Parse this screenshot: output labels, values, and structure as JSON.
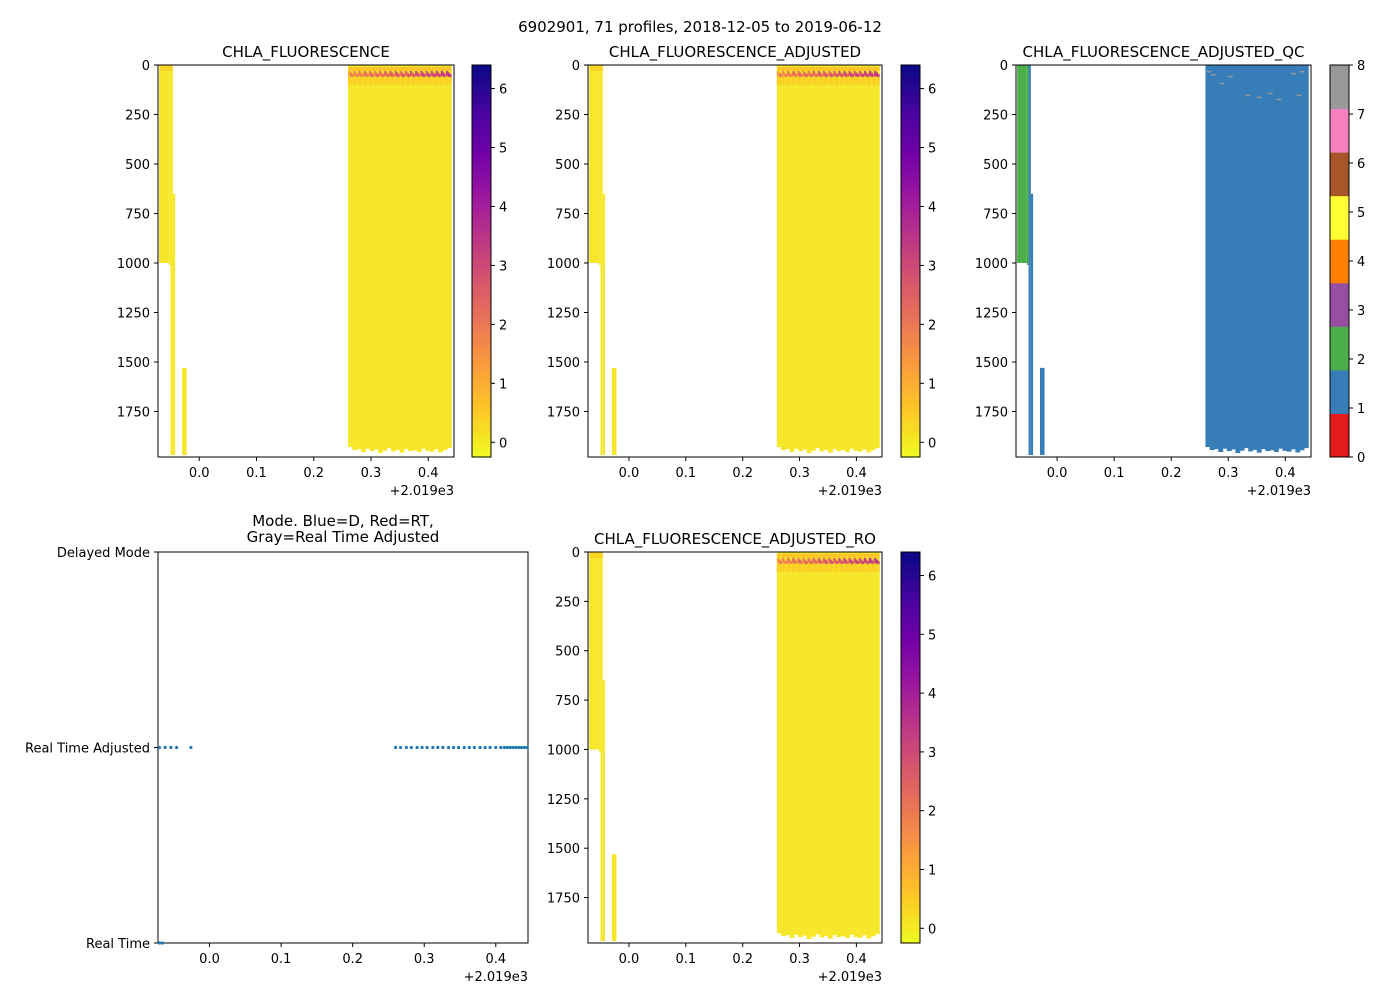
{
  "figure": {
    "suptitle": "6902901, 71 profiles, 2018-12-05 to 2019-06-12",
    "offset_label": "+2.019e3"
  },
  "colors": {
    "yellow": "#f5e62b",
    "fill_main": "#f6e72a",
    "mode_blue": "#1f77b4",
    "qc_palette": [
      "#e41a1c",
      "#377eb8",
      "#4daf4a",
      "#984ea3",
      "#ff7f00",
      "#ffff33",
      "#a65628",
      "#f781bf",
      "#999999"
    ]
  },
  "chart_data": [
    {
      "id": "chla",
      "type": "heatmap",
      "title": "CHLA_FLUORESCENCE",
      "x_range": [
        -0.072,
        0.445
      ],
      "x_ticks": [
        "0.0",
        "0.1",
        "0.2",
        "0.3",
        "0.4"
      ],
      "y_range": [
        0,
        1980
      ],
      "y_ticks": [
        "0",
        "250",
        "500",
        "750",
        "1000",
        "1250",
        "1500",
        "1750"
      ],
      "colorbar": {
        "cmap": "plasma_r",
        "range": [
          -0.25,
          6.4
        ],
        "ticks": [
          "0",
          "1",
          "2",
          "3",
          "4",
          "5",
          "6"
        ]
      }
    },
    {
      "id": "chla_adj",
      "type": "heatmap",
      "title": "CHLA_FLUORESCENCE_ADJUSTED",
      "x_range": [
        -0.072,
        0.445
      ],
      "x_ticks": [
        "0.0",
        "0.1",
        "0.2",
        "0.3",
        "0.4"
      ],
      "y_range": [
        0,
        1980
      ],
      "y_ticks": [
        "0",
        "250",
        "500",
        "750",
        "1000",
        "1250",
        "1500",
        "1750"
      ],
      "colorbar": {
        "cmap": "plasma_r",
        "range": [
          -0.25,
          6.4
        ],
        "ticks": [
          "0",
          "1",
          "2",
          "3",
          "4",
          "5",
          "6"
        ]
      }
    },
    {
      "id": "chla_qc",
      "type": "heatmap",
      "title": "CHLA_FLUORESCENCE_ADJUSTED_QC",
      "x_range": [
        -0.072,
        0.445
      ],
      "x_ticks": [
        "0.0",
        "0.1",
        "0.2",
        "0.3",
        "0.4"
      ],
      "y_range": [
        0,
        1980
      ],
      "y_ticks": [
        "0",
        "250",
        "500",
        "750",
        "1000",
        "1250",
        "1500",
        "1750"
      ],
      "colorbar": {
        "cmap": "qc",
        "range": [
          0,
          8
        ],
        "ticks": [
          "0",
          "1",
          "2",
          "3",
          "4",
          "5",
          "6",
          "7",
          "8"
        ]
      }
    },
    {
      "id": "mode",
      "type": "scatter",
      "title_lines": [
        "Mode. Blue=D, Red=RT,",
        "Gray=Real Time Adjusted"
      ],
      "x_range": [
        -0.072,
        0.445
      ],
      "x_ticks": [
        "0.0",
        "0.1",
        "0.2",
        "0.3",
        "0.4"
      ],
      "y_categories": [
        "Real Time",
        "Real Time Adjusted",
        "Delayed Mode"
      ],
      "series": [
        {
          "name": "Real Time Adjusted",
          "x": [
            -0.07,
            -0.062,
            -0.054,
            -0.046,
            -0.026,
            0.26,
            0.267,
            0.275,
            0.282,
            0.29,
            0.297,
            0.304,
            0.312,
            0.319,
            0.326,
            0.334,
            0.341,
            0.348,
            0.356,
            0.363,
            0.37,
            0.378,
            0.385,
            0.392,
            0.4,
            0.407,
            0.412,
            0.416,
            0.42,
            0.424,
            0.428,
            0.432,
            0.436,
            0.44,
            0.444
          ]
        },
        {
          "name": "Real Time",
          "x": [
            -0.07,
            -0.066
          ]
        }
      ]
    },
    {
      "id": "chla_ro",
      "type": "heatmap",
      "title": "CHLA_FLUORESCENCE_ADJUSTED_RO",
      "x_range": [
        -0.072,
        0.445
      ],
      "x_ticks": [
        "0.0",
        "0.1",
        "0.2",
        "0.3",
        "0.4"
      ],
      "y_range": [
        0,
        1980
      ],
      "y_ticks": [
        "0",
        "250",
        "500",
        "750",
        "1000",
        "1250",
        "1500",
        "1750"
      ],
      "colorbar": {
        "cmap": "plasma_r",
        "range": [
          -0.25,
          6.4
        ],
        "ticks": [
          "0",
          "1",
          "2",
          "3",
          "4",
          "5",
          "6"
        ]
      }
    }
  ]
}
